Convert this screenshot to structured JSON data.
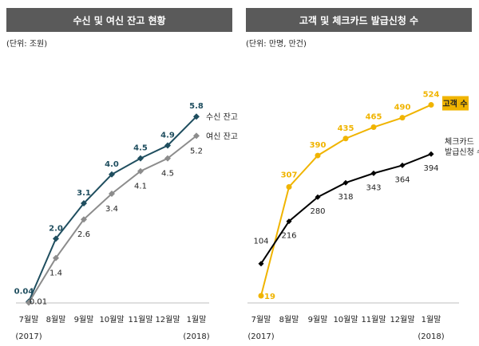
{
  "chart_data": [
    {
      "type": "line",
      "title": "수신 및 여신 잔고 현황",
      "unit": "(단위: 조원)",
      "categories": [
        "7월말",
        "8월말",
        "9월말",
        "10월말",
        "11월말",
        "12월말",
        "1월말"
      ],
      "year_labels": [
        "(2017)",
        "",
        "",
        "",
        "",
        "",
        "(2018)"
      ],
      "ylim": [
        0,
        6.5
      ],
      "series": [
        {
          "name": "수신 잔고",
          "color": "#1f4e5f",
          "values": [
            0.04,
            2.0,
            3.1,
            4.0,
            4.5,
            4.9,
            5.8
          ],
          "labels": [
            "0.04",
            "2.0",
            "3.1",
            "4.0",
            "4.5",
            "4.9",
            "5.8"
          ]
        },
        {
          "name": "여신 잔고",
          "color": "#8c8c8c",
          "values": [
            0.01,
            1.4,
            2.6,
            3.4,
            4.1,
            4.5,
            5.2
          ],
          "labels": [
            "0.01",
            "1.4",
            "2.6",
            "3.4",
            "4.1",
            "4.5",
            "5.2"
          ]
        }
      ]
    },
    {
      "type": "line",
      "title": "고객 및 체크카드 발급신청 수",
      "unit": "(단위: 만명, 만건)",
      "categories": [
        "7월말",
        "8월말",
        "9월말",
        "10월말",
        "11월말",
        "12월말",
        "1월말"
      ],
      "year_labels": [
        "(2017)",
        "",
        "",
        "",
        "",
        "",
        "(2018)"
      ],
      "ylim": [
        0,
        580
      ],
      "series": [
        {
          "name": "고객 수",
          "color": "#f0b400",
          "values": [
            19,
            307,
            390,
            435,
            465,
            490,
            524
          ],
          "labels": [
            "19",
            "307",
            "390",
            "435",
            "465",
            "490",
            "524"
          ]
        },
        {
          "name": "체크카드 발급신청 수",
          "legend_lines": [
            "체크카드",
            "발급신청 수"
          ],
          "color": "#000000",
          "values": [
            104,
            216,
            280,
            318,
            343,
            364,
            394
          ],
          "labels": [
            "104",
            "216",
            "280",
            "318",
            "343",
            "364",
            "394"
          ]
        }
      ]
    }
  ]
}
